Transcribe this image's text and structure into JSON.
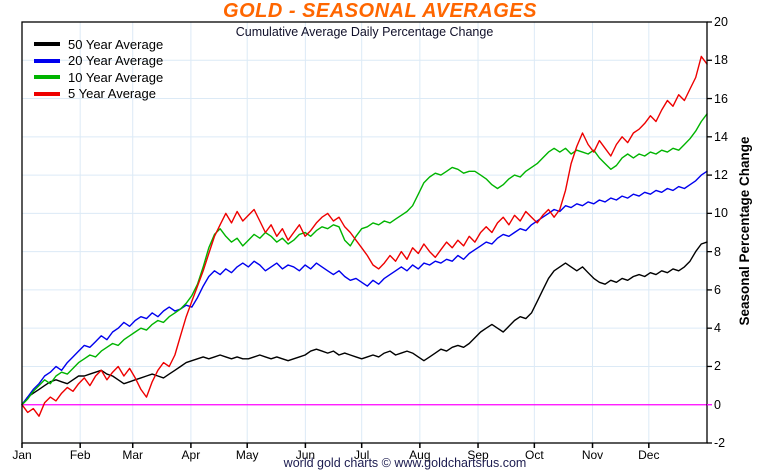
{
  "title": "GOLD - SEASONAL AVERAGES",
  "subtitle": "Cumulative Average Daily Percentage Change",
  "footer": "world gold charts © www.goldchartsrus.com",
  "colors": {
    "title": "#ff6600",
    "subtitle_text": "#10102a",
    "footer_text": "#1b1b4f",
    "grid": "#dceaf6",
    "axis": "#000000",
    "zero_line": "#ff00ff",
    "background": "#ffffff"
  },
  "chart_data": {
    "type": "line",
    "title": "GOLD - SEASONAL AVERAGES",
    "subtitle": "Cumulative Average Daily Percentage Change",
    "xlabel": "",
    "ylabel": "Seasonal Percentage Change",
    "ylim": [
      -2,
      20
    ],
    "y_ticks": [
      20,
      18,
      16,
      14,
      12,
      10,
      8,
      6,
      4,
      2,
      0,
      -2
    ],
    "x_tick_labels": [
      "Jan",
      "Feb",
      "Mar",
      "Apr",
      "May",
      "Jun",
      "Jul",
      "Aug",
      "Sep",
      "Oct",
      "Nov",
      "Dec"
    ],
    "month_start_days": [
      0,
      31,
      59,
      90,
      120,
      151,
      181,
      212,
      243,
      273,
      304,
      334
    ],
    "days_in_year": 365,
    "grid": true,
    "legend_position": "top-left",
    "zero_line_value": 0,
    "series": [
      {
        "name": "50 Year Average",
        "color": "#000000",
        "values": [
          0.0,
          0.4,
          0.6,
          0.8,
          1.0,
          1.2,
          1.3,
          1.2,
          1.1,
          1.3,
          1.5,
          1.5,
          1.6,
          1.7,
          1.8,
          1.6,
          1.5,
          1.3,
          1.1,
          1.2,
          1.3,
          1.4,
          1.5,
          1.6,
          1.5,
          1.4,
          1.6,
          1.8,
          2.0,
          2.2,
          2.3,
          2.4,
          2.5,
          2.4,
          2.5,
          2.6,
          2.5,
          2.4,
          2.5,
          2.4,
          2.4,
          2.5,
          2.6,
          2.5,
          2.4,
          2.5,
          2.4,
          2.3,
          2.4,
          2.5,
          2.6,
          2.8,
          2.9,
          2.8,
          2.7,
          2.8,
          2.6,
          2.7,
          2.6,
          2.5,
          2.4,
          2.5,
          2.6,
          2.5,
          2.7,
          2.8,
          2.6,
          2.7,
          2.8,
          2.7,
          2.5,
          2.3,
          2.5,
          2.7,
          2.9,
          2.8,
          3.0,
          3.1,
          3.0,
          3.2,
          3.5,
          3.8,
          4.0,
          4.2,
          4.0,
          3.8,
          4.1,
          4.4,
          4.6,
          4.5,
          4.8,
          5.4,
          6.0,
          6.6,
          7.0,
          7.2,
          7.4,
          7.2,
          7.0,
          7.2,
          6.9,
          6.6,
          6.4,
          6.3,
          6.5,
          6.4,
          6.6,
          6.5,
          6.7,
          6.8,
          6.7,
          6.9,
          6.8,
          7.0,
          6.9,
          7.1,
          7.0,
          7.2,
          7.5,
          8.0,
          8.4,
          8.5
        ]
      },
      {
        "name": "20 Year Average",
        "color": "#0000ee",
        "values": [
          0.0,
          0.4,
          0.8,
          1.1,
          1.5,
          1.7,
          2.0,
          1.8,
          2.2,
          2.5,
          2.8,
          3.1,
          3.0,
          3.3,
          3.6,
          3.4,
          3.8,
          4.0,
          4.3,
          4.1,
          4.4,
          4.6,
          4.5,
          4.8,
          4.6,
          4.9,
          5.1,
          4.9,
          5.0,
          5.2,
          5.1,
          5.6,
          6.2,
          6.7,
          7.0,
          6.8,
          7.1,
          6.9,
          7.2,
          7.4,
          7.2,
          7.5,
          7.3,
          7.0,
          7.2,
          7.4,
          7.1,
          7.3,
          7.2,
          7.0,
          7.3,
          7.1,
          7.4,
          7.2,
          7.0,
          6.8,
          7.0,
          6.7,
          6.5,
          6.6,
          6.4,
          6.2,
          6.5,
          6.3,
          6.6,
          6.8,
          7.0,
          7.2,
          7.0,
          7.3,
          7.1,
          7.4,
          7.3,
          7.5,
          7.4,
          7.6,
          7.5,
          7.8,
          7.6,
          7.9,
          8.1,
          8.3,
          8.5,
          8.4,
          8.7,
          8.9,
          8.8,
          9.0,
          9.2,
          9.1,
          9.4,
          9.6,
          9.8,
          10.0,
          10.2,
          10.1,
          10.4,
          10.3,
          10.5,
          10.4,
          10.6,
          10.5,
          10.7,
          10.6,
          10.8,
          10.7,
          10.9,
          10.8,
          11.0,
          10.9,
          11.1,
          11.0,
          11.2,
          11.1,
          11.3,
          11.2,
          11.4,
          11.3,
          11.5,
          11.7,
          12.0,
          12.2
        ]
      },
      {
        "name": "10 Year Average",
        "color": "#00b400",
        "values": [
          0.0,
          0.3,
          0.7,
          1.0,
          1.3,
          1.1,
          1.5,
          1.7,
          1.6,
          1.9,
          2.2,
          2.4,
          2.6,
          2.5,
          2.8,
          3.0,
          3.2,
          3.1,
          3.4,
          3.6,
          3.8,
          4.0,
          3.9,
          4.2,
          4.4,
          4.3,
          4.6,
          4.8,
          5.0,
          5.3,
          5.7,
          6.3,
          7.2,
          8.2,
          8.9,
          9.2,
          8.8,
          8.5,
          8.7,
          8.3,
          8.6,
          8.9,
          8.7,
          9.0,
          8.8,
          8.5,
          8.7,
          8.4,
          8.6,
          8.9,
          9.0,
          8.8,
          9.1,
          9.3,
          9.2,
          9.4,
          9.3,
          8.6,
          8.3,
          8.8,
          9.2,
          9.3,
          9.5,
          9.4,
          9.6,
          9.5,
          9.7,
          9.9,
          10.1,
          10.4,
          11.0,
          11.6,
          11.9,
          12.1,
          12.0,
          12.2,
          12.4,
          12.3,
          12.1,
          12.2,
          12.2,
          12.0,
          11.8,
          11.5,
          11.3,
          11.5,
          11.8,
          12.0,
          11.9,
          12.2,
          12.4,
          12.6,
          12.9,
          13.2,
          13.4,
          13.2,
          13.4,
          13.1,
          13.3,
          13.2,
          13.1,
          13.3,
          12.9,
          12.6,
          12.3,
          12.5,
          12.9,
          13.1,
          12.9,
          13.1,
          13.0,
          13.2,
          13.1,
          13.3,
          13.2,
          13.4,
          13.3,
          13.6,
          13.9,
          14.3,
          14.8,
          15.2
        ]
      },
      {
        "name": "5 Year Average",
        "color": "#ee0000",
        "values": [
          0.0,
          -0.4,
          -0.2,
          -0.6,
          0.1,
          0.4,
          0.2,
          0.6,
          0.9,
          0.7,
          1.1,
          1.4,
          1.0,
          1.5,
          1.8,
          1.3,
          1.7,
          2.0,
          1.5,
          1.9,
          1.4,
          0.8,
          0.4,
          1.2,
          1.8,
          2.2,
          2.0,
          2.6,
          3.6,
          4.6,
          5.4,
          6.2,
          7.0,
          7.9,
          8.8,
          9.4,
          10.0,
          9.5,
          10.1,
          9.6,
          9.9,
          10.2,
          9.6,
          9.0,
          9.4,
          8.8,
          9.2,
          8.6,
          9.0,
          9.4,
          8.8,
          9.1,
          9.5,
          9.8,
          10.0,
          9.6,
          9.8,
          9.3,
          9.0,
          8.6,
          8.2,
          7.8,
          7.3,
          7.1,
          7.4,
          7.8,
          7.5,
          8.0,
          7.6,
          8.2,
          7.9,
          8.4,
          8.0,
          7.7,
          8.1,
          8.5,
          8.2,
          8.6,
          8.3,
          8.8,
          8.5,
          9.0,
          9.3,
          9.0,
          9.5,
          9.8,
          9.4,
          9.9,
          9.6,
          10.1,
          9.8,
          9.5,
          9.9,
          10.2,
          9.8,
          10.2,
          11.2,
          12.6,
          13.5,
          14.2,
          13.6,
          13.2,
          13.8,
          13.4,
          13.0,
          13.6,
          14.0,
          13.7,
          14.2,
          14.4,
          14.7,
          15.1,
          14.8,
          15.4,
          15.9,
          15.6,
          16.2,
          15.9,
          16.5,
          17.1,
          18.2,
          17.8
        ]
      }
    ]
  },
  "legend": {
    "items": [
      "50 Year Average",
      "20 Year Average",
      "10 Year Average",
      "5 Year Average"
    ]
  }
}
